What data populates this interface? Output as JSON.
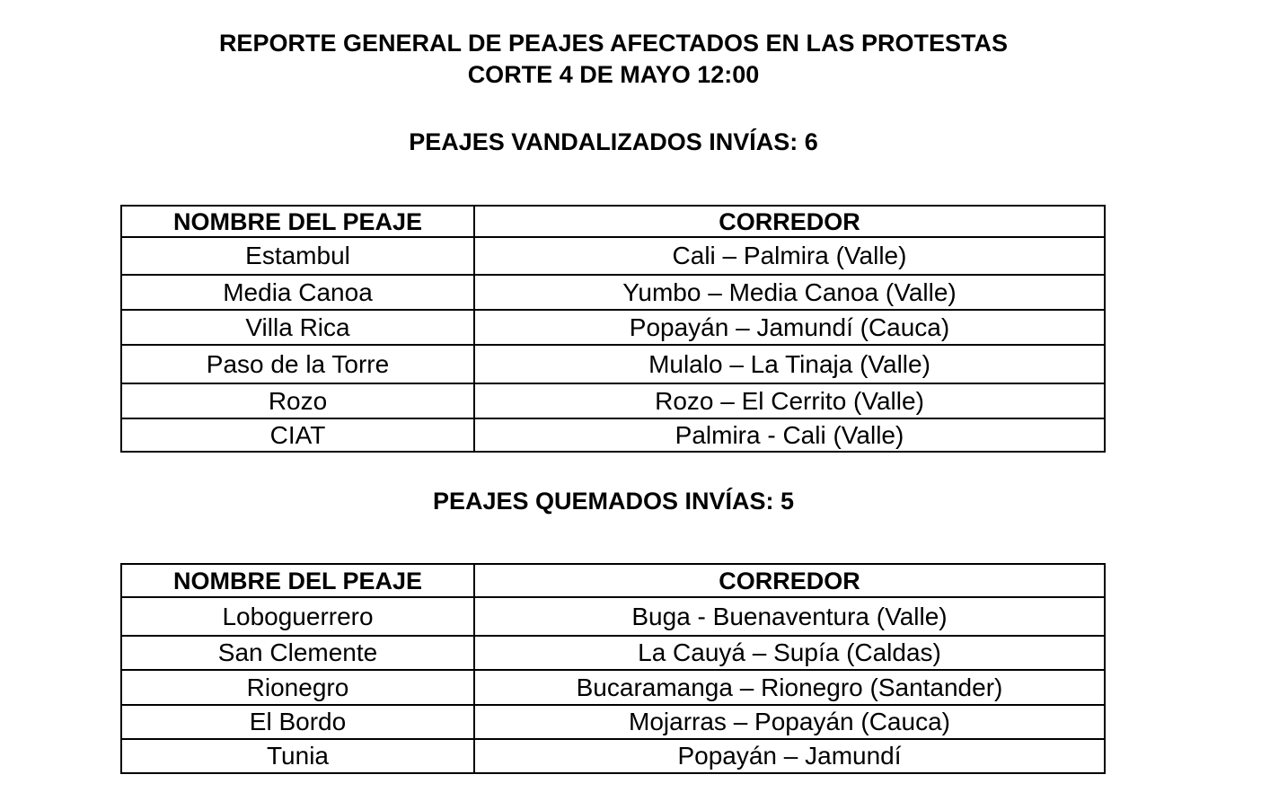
{
  "header": {
    "title_line1": "REPORTE GENERAL DE PEAJES AFECTADOS EN LAS PROTESTAS",
    "title_line2": "CORTE 4 DE MAYO 12:00"
  },
  "vandalizados": {
    "heading": "PEAJES VANDALIZADOS INVÍAS: 6",
    "columns": [
      "NOMBRE DEL PEAJE",
      "CORREDOR"
    ],
    "rows": [
      [
        "Estambul",
        "Cali – Palmira (Valle)"
      ],
      [
        "Media Canoa",
        "Yumbo – Media Canoa (Valle)"
      ],
      [
        "Villa Rica",
        "Popayán – Jamundí (Cauca)"
      ],
      [
        "Paso de la Torre",
        "Mulalo – La Tinaja (Valle)"
      ],
      [
        "Rozo",
        "Rozo – El Cerrito (Valle)"
      ],
      [
        "CIAT",
        "Palmira - Cali (Valle)"
      ]
    ]
  },
  "quemados": {
    "heading": "PEAJES QUEMADOS INVÍAS: 5",
    "columns": [
      "NOMBRE DEL PEAJE",
      "CORREDOR"
    ],
    "rows": [
      [
        "Loboguerrero",
        "Buga - Buenaventura (Valle)"
      ],
      [
        "San Clemente",
        "La Cauyá – Supía (Caldas)"
      ],
      [
        "Rionegro",
        "Bucaramanga – Rionegro (Santander)"
      ],
      [
        "El Bordo",
        "Mojarras – Popayán (Cauca)"
      ],
      [
        "Tunia",
        "Popayán – Jamundí"
      ]
    ]
  }
}
